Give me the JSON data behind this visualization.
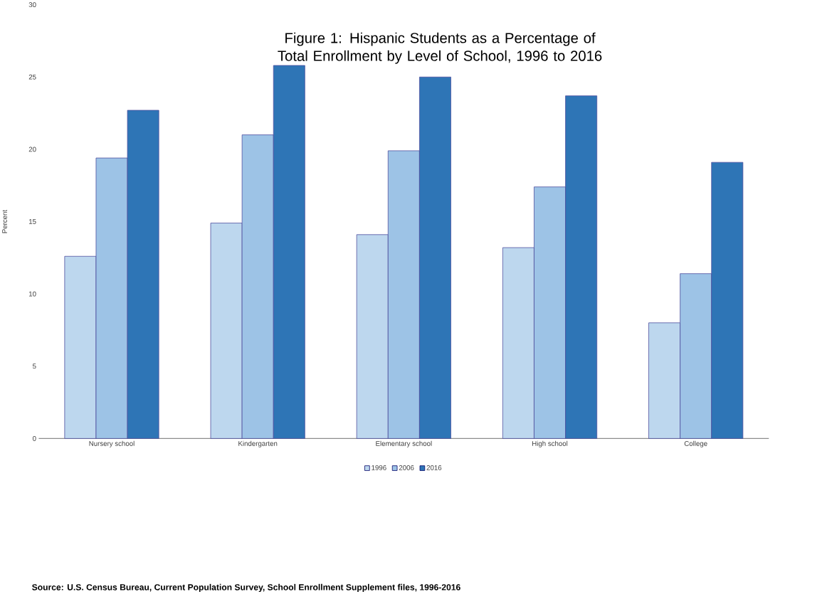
{
  "chart_data": {
    "type": "bar",
    "title": "Figure 1: Hispanic Students as a Percentage of Total Enrollment by Level of School, 1996 to 2016",
    "ylabel": "Percent",
    "categories": [
      "Nursery school",
      "Kindergarten",
      "Elementary school",
      "High school",
      "College"
    ],
    "series": [
      {
        "name": "1996",
        "color": "#bdd7ee",
        "values": [
          12.6,
          14.9,
          14.1,
          13.2,
          8.0
        ]
      },
      {
        "name": "2006",
        "color": "#9dc3e6",
        "values": [
          19.4,
          21.0,
          19.9,
          17.4,
          11.4
        ]
      },
      {
        "name": "2016",
        "color": "#2e75b6",
        "values": [
          22.7,
          25.8,
          25.0,
          23.7,
          19.1
        ]
      }
    ],
    "ylim": [
      0,
      30
    ],
    "yticks": [
      0,
      5,
      10,
      15,
      20,
      25,
      30
    ],
    "legend": "bottom",
    "annotations": [
      "Source: U.S. Census Bureau, Current Population Survey, School Enrollment Supplement files, 1996-2016"
    ]
  }
}
